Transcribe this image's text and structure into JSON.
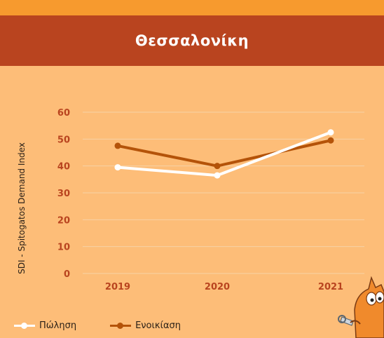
{
  "title": "Θεσσαλονίκη",
  "colors": {
    "top_strip": "#F79A2E",
    "title_band": "#B9441F",
    "background": "#FDBD78",
    "tick_label": "#B9441F"
  },
  "chart_data": {
    "type": "line",
    "title": "Θεσσαλονίκη",
    "xlabel": "",
    "ylabel": "SDI - Spitogatos Demand Index",
    "categories": [
      "2019",
      "2020",
      "2021"
    ],
    "yticks": [
      "0",
      "10",
      "20",
      "30",
      "40",
      "50",
      "60"
    ],
    "ylim": [
      0,
      60
    ],
    "grid": true,
    "legend_position": "bottom-left",
    "series": [
      {
        "name": "Πώληση",
        "values": [
          39.5,
          36.5,
          52.5
        ],
        "color": "#FFFFFF"
      },
      {
        "name": "Ενοικίαση",
        "values": [
          47.5,
          40.0,
          49.5
        ],
        "color": "#B45309"
      }
    ]
  }
}
